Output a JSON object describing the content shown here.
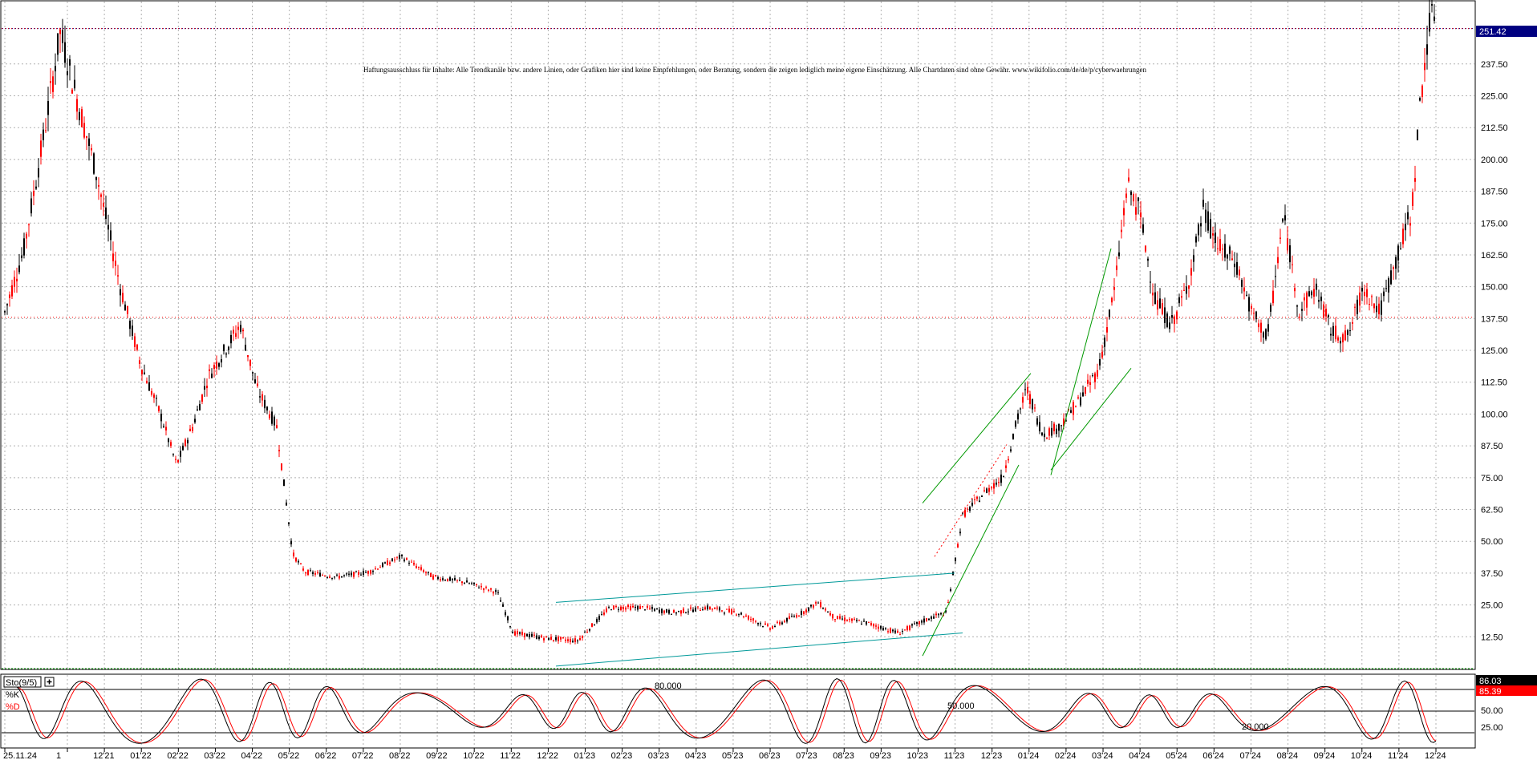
{
  "disclaimer": "Haftungsausschluss für Inhalte: Alle Trendkanäle bzw. andere Linien, oder Grafiken hier sind keine Empfehlungen, oder Beratung, sondern die zeigen lediglich meine eigene Einschätzung. Alle Chartdaten sind ohne Gewähr. www.wikifolio.com/de/de/p/cyberwaehrungen",
  "current_price_label": "251.42",
  "chart_data": [
    {
      "type": "candlestick",
      "yticks": [
        "12.50",
        "25.00",
        "37.50",
        "50.00",
        "62.50",
        "75.00",
        "87.50",
        "100.00",
        "112.50",
        "125.00",
        "137.50",
        "150.00",
        "162.50",
        "175.00",
        "187.50",
        "200.00",
        "212.50",
        "225.00",
        "237.50",
        "251.42"
      ],
      "ylim": [
        0,
        262
      ],
      "xticks": [
        "25.11.24",
        "1",
        "12'21",
        "01'22",
        "02'22",
        "03'22",
        "04'22",
        "05'22",
        "06'22",
        "07'22",
        "08'22",
        "09'22",
        "10'22",
        "11'22",
        "12'22",
        "01'23",
        "02'23",
        "03'23",
        "04'23",
        "05'23",
        "06'23",
        "07'23",
        "08'23",
        "09'23",
        "10'23",
        "11'23",
        "12'23",
        "01'24",
        "02'24",
        "03'24",
        "04'24",
        "05'24",
        "06'24",
        "07'24",
        "08'24",
        "09'24",
        "10'24",
        "11'24",
        "12'24"
      ],
      "last_price": 251.42,
      "colors": {
        "down": "#ff0000",
        "up": "#000000",
        "channel1": "#009999",
        "channel2": "#009900",
        "price_line": "#000080"
      }
    },
    {
      "type": "line",
      "indicator_label": "Sto(9/5)",
      "series": [
        {
          "name": "%K",
          "color": "#000000",
          "last": 86.03
        },
        {
          "name": "%D",
          "color": "#ff0000",
          "last": 85.39
        }
      ],
      "levels": [
        "80.000",
        "50.000",
        "20.000"
      ],
      "yticks": [
        "50.00",
        "25.00"
      ],
      "last_labels": [
        "86.03",
        "85.39"
      ]
    }
  ]
}
